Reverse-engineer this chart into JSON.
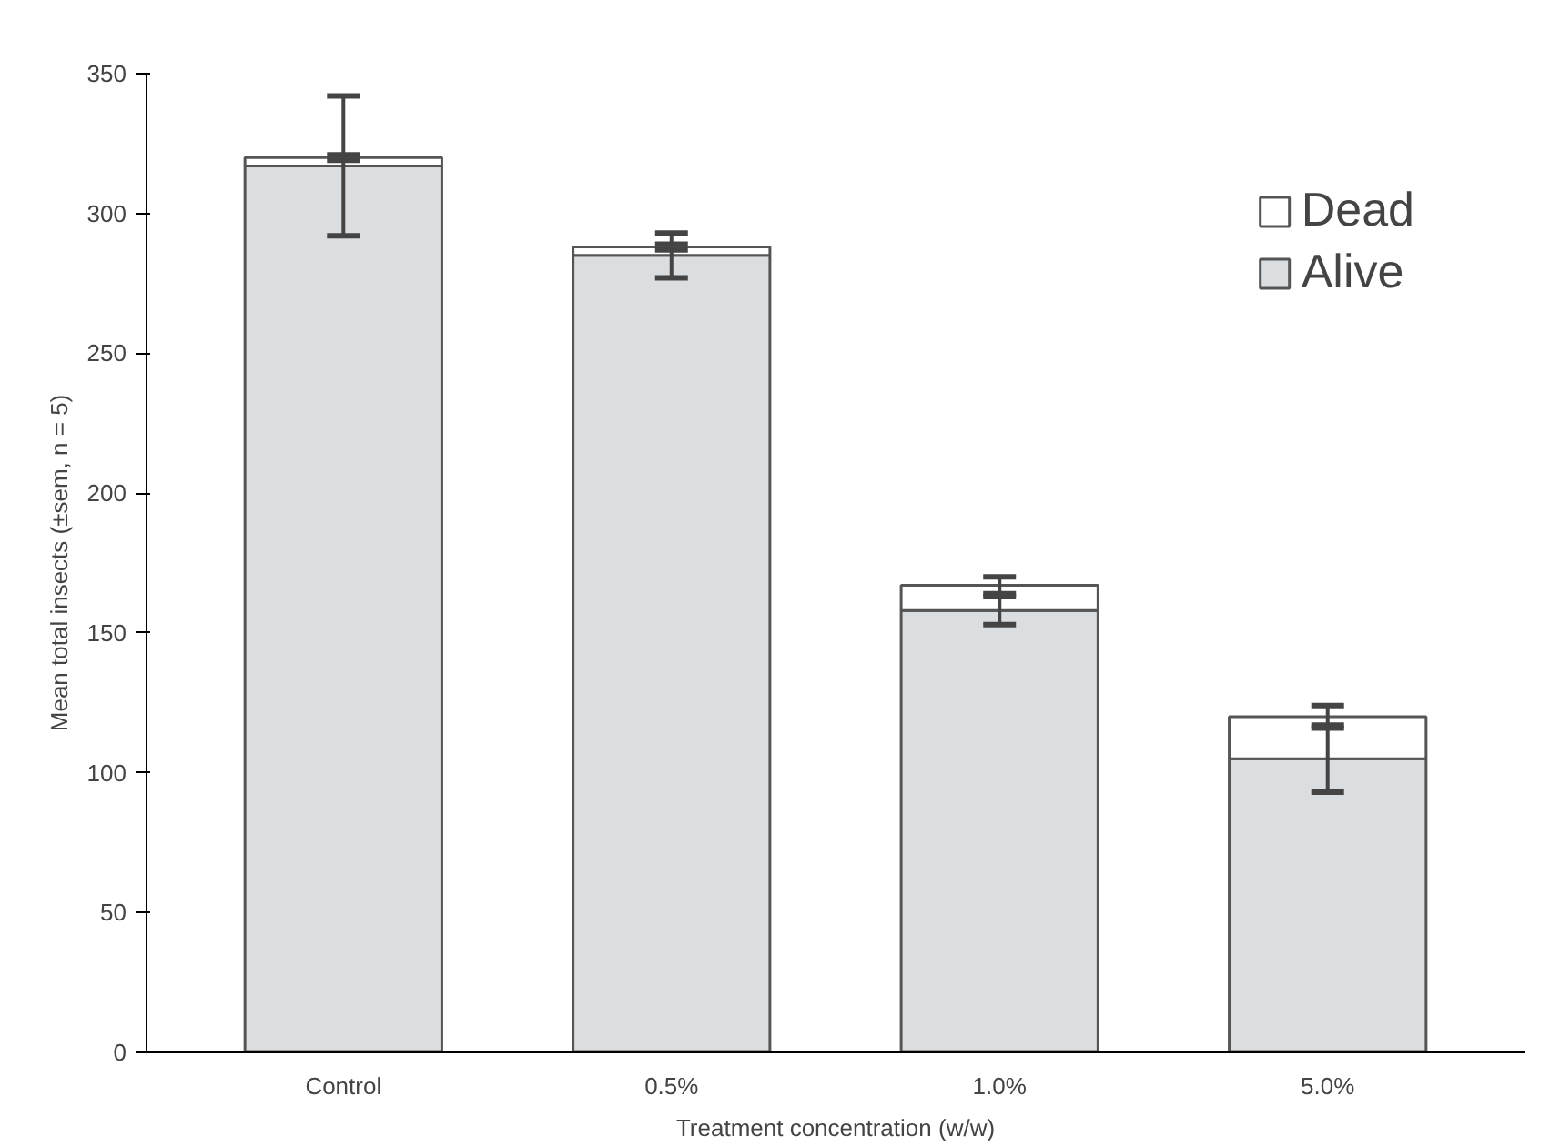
{
  "chart_data": {
    "type": "bar",
    "stacked": true,
    "xlabel": "Treatment concentration (w/w)",
    "ylabel": "Mean total insects (±sem, n = 5)",
    "categories": [
      "Control",
      "0.5%",
      "1.0%",
      "5.0%"
    ],
    "series": [
      {
        "name": "Alive",
        "color": "#dadee1",
        "values": [
          317,
          285,
          158,
          105
        ],
        "errors": [
          25,
          8,
          5,
          12
        ]
      },
      {
        "name": "Dead",
        "color": "#ffffff",
        "values": [
          3,
          3,
          9,
          15
        ],
        "errors": [
          1,
          1,
          3,
          4
        ]
      }
    ],
    "ylim": [
      0,
      350
    ],
    "yticks": [
      0,
      50,
      100,
      150,
      200,
      250,
      300,
      350
    ],
    "grid": false,
    "legend": "top right"
  }
}
